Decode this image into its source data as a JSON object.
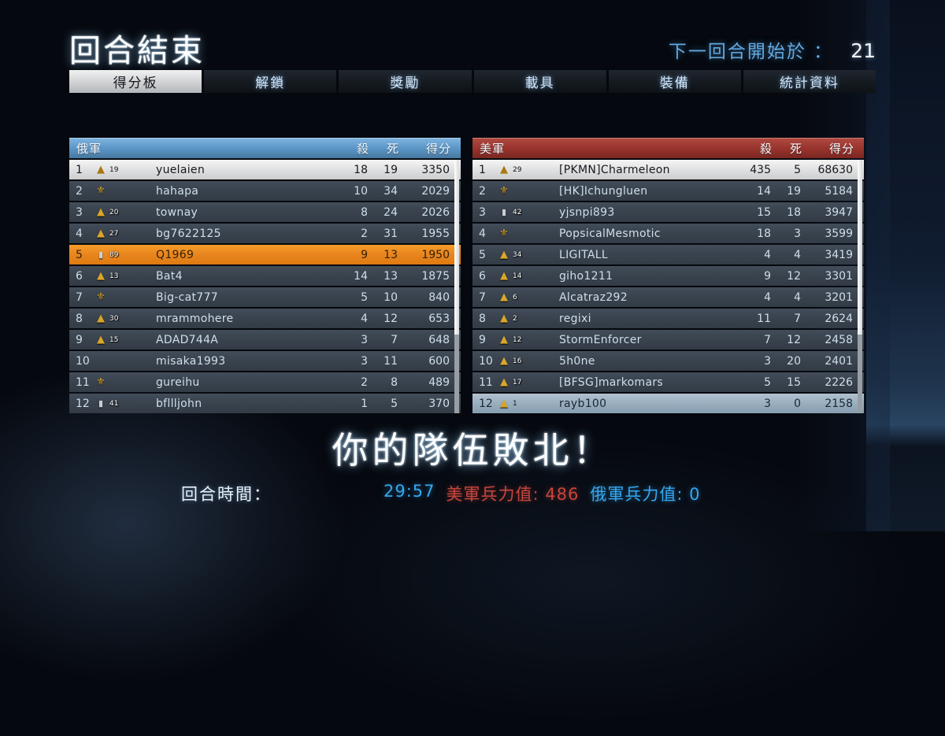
{
  "header": {
    "title": "回合結束",
    "countdown_label": "下一回合開始於 ：",
    "countdown_value": "21"
  },
  "tabs": [
    {
      "label": "得分板",
      "active": true
    },
    {
      "label": "解鎖",
      "active": false
    },
    {
      "label": "獎勵",
      "active": false
    },
    {
      "label": "載具",
      "active": false
    },
    {
      "label": "裝備",
      "active": false
    },
    {
      "label": "統計資料",
      "active": false
    }
  ],
  "scoreboard": {
    "columns": {
      "kills": "殺",
      "deaths": "死",
      "score": "得分"
    },
    "teams": [
      {
        "name": "俄軍",
        "side": "blue",
        "players": [
          {
            "rank": 1,
            "badge": "chevron",
            "badge_num": "19",
            "name": "yuelaien",
            "kills": 18,
            "deaths": 19,
            "score": 3350,
            "highlight": "white"
          },
          {
            "rank": 2,
            "badge": "eagle",
            "badge_num": "",
            "name": "hahapa",
            "kills": 10,
            "deaths": 34,
            "score": 2029,
            "highlight": ""
          },
          {
            "rank": 3,
            "badge": "chevron",
            "badge_num": "20",
            "name": "townay",
            "kills": 8,
            "deaths": 24,
            "score": 2026,
            "highlight": ""
          },
          {
            "rank": 4,
            "badge": "chevron",
            "badge_num": "27",
            "name": "bg7622125",
            "kills": 2,
            "deaths": 31,
            "score": 1955,
            "highlight": ""
          },
          {
            "rank": 5,
            "badge": "bar",
            "badge_num": "89",
            "name": "Q1969",
            "kills": 9,
            "deaths": 13,
            "score": 1950,
            "highlight": "orange"
          },
          {
            "rank": 6,
            "badge": "chevron",
            "badge_num": "13",
            "name": "Bat4",
            "kills": 14,
            "deaths": 13,
            "score": 1875,
            "highlight": ""
          },
          {
            "rank": 7,
            "badge": "eagle",
            "badge_num": "",
            "name": "Big-cat777",
            "kills": 5,
            "deaths": 10,
            "score": 840,
            "highlight": ""
          },
          {
            "rank": 8,
            "badge": "chevron",
            "badge_num": "30",
            "name": "mrammohere",
            "kills": 4,
            "deaths": 12,
            "score": 653,
            "highlight": ""
          },
          {
            "rank": 9,
            "badge": "chevron",
            "badge_num": "15",
            "name": "ADAD744A",
            "kills": 3,
            "deaths": 7,
            "score": 648,
            "highlight": ""
          },
          {
            "rank": 10,
            "badge": "none",
            "badge_num": "",
            "name": "misaka1993",
            "kills": 3,
            "deaths": 11,
            "score": 600,
            "highlight": ""
          },
          {
            "rank": 11,
            "badge": "eagle",
            "badge_num": "",
            "name": "gureihu",
            "kills": 2,
            "deaths": 8,
            "score": 489,
            "highlight": ""
          },
          {
            "rank": 12,
            "badge": "bar",
            "badge_num": "41",
            "name": "bfllljohn",
            "kills": 1,
            "deaths": 5,
            "score": 370,
            "highlight": ""
          }
        ]
      },
      {
        "name": "美軍",
        "side": "red",
        "players": [
          {
            "rank": 1,
            "badge": "chevron",
            "badge_num": "29",
            "name": "[PKMN]Charmeleon",
            "kills": 435,
            "deaths": 5,
            "score": 68630,
            "highlight": "white"
          },
          {
            "rank": 2,
            "badge": "eagle",
            "badge_num": "",
            "name": "[HK]Ichungluen",
            "kills": 14,
            "deaths": 19,
            "score": 5184,
            "highlight": ""
          },
          {
            "rank": 3,
            "badge": "bar",
            "badge_num": "42",
            "name": "yjsnpi893",
            "kills": 15,
            "deaths": 18,
            "score": 3947,
            "highlight": ""
          },
          {
            "rank": 4,
            "badge": "eagle",
            "badge_num": "",
            "name": "PopsicalMesmotic",
            "kills": 18,
            "deaths": 3,
            "score": 3599,
            "highlight": ""
          },
          {
            "rank": 5,
            "badge": "chevron",
            "badge_num": "34",
            "name": "LIGITALL",
            "kills": 4,
            "deaths": 4,
            "score": 3419,
            "highlight": ""
          },
          {
            "rank": 6,
            "badge": "chevron",
            "badge_num": "14",
            "name": "giho1211",
            "kills": 9,
            "deaths": 12,
            "score": 3301,
            "highlight": ""
          },
          {
            "rank": 7,
            "badge": "chevron",
            "badge_num": "6",
            "name": "Alcatraz292",
            "kills": 4,
            "deaths": 4,
            "score": 3201,
            "highlight": ""
          },
          {
            "rank": 8,
            "badge": "chevron",
            "badge_num": "2",
            "name": "regixi",
            "kills": 11,
            "deaths": 7,
            "score": 2624,
            "highlight": ""
          },
          {
            "rank": 9,
            "badge": "chevron",
            "badge_num": "12",
            "name": "StormEnforcer",
            "kills": 7,
            "deaths": 12,
            "score": 2458,
            "highlight": ""
          },
          {
            "rank": 10,
            "badge": "chevron",
            "badge_num": "16",
            "name": "5h0ne",
            "kills": 3,
            "deaths": 20,
            "score": 2401,
            "highlight": ""
          },
          {
            "rank": 11,
            "badge": "chevron",
            "badge_num": "17",
            "name": "[BFSG]markomars",
            "kills": 5,
            "deaths": 15,
            "score": 2226,
            "highlight": ""
          },
          {
            "rank": 12,
            "badge": "chevron",
            "badge_num": "1",
            "name": "rayb100",
            "kills": 3,
            "deaths": 0,
            "score": 2158,
            "highlight": "steel"
          }
        ]
      }
    ]
  },
  "icons": {
    "chevron": "▲",
    "eagle": "⚜",
    "bar": "▮",
    "none": ""
  },
  "result_banner": "你的隊伍敗北！",
  "footer": {
    "round_time_label": "回合時間：",
    "round_time_value": "29:57",
    "us_tickets_label": "美軍兵力值:",
    "us_tickets_value": "486",
    "ru_tickets_label": "俄軍兵力值:",
    "ru_tickets_value": "0"
  },
  "colors": {
    "team_blue_header": "#5a94c5",
    "team_red_header": "#96332c",
    "highlight_orange": "#e8851e",
    "highlight_steel": "#97adbe",
    "accent_blue": "#35a7f0",
    "accent_red": "#c8453c",
    "countdown_blue": "#63a8dd"
  }
}
